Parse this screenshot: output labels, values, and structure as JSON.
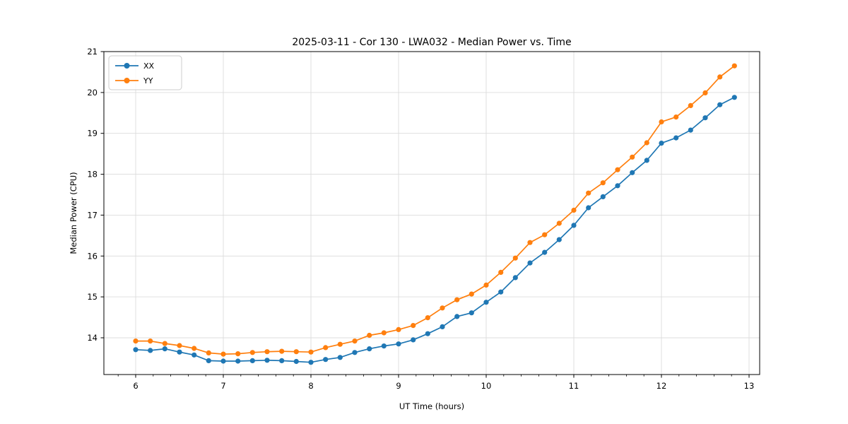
{
  "chart_data": {
    "type": "line",
    "title": "2025-03-11 - Cor 130 - LWA032 - Median Power vs. Time",
    "xlabel": "UT Time (hours)",
    "ylabel": "Median Power (CPU)",
    "xlim": [
      5.637,
      13.121
    ],
    "ylim": [
      13.101,
      21.0
    ],
    "xticks": [
      6,
      7,
      8,
      9,
      10,
      11,
      12,
      13
    ],
    "yticks": [
      14,
      15,
      16,
      17,
      18,
      19,
      20,
      21
    ],
    "x_minor_step": 0.2,
    "grid": true,
    "grid_color": "#dcdcdc",
    "marker": "circle",
    "legend_position": "upper-left",
    "legend_labels": [
      "XX",
      "YY"
    ],
    "x": [
      6.0,
      6.167,
      6.333,
      6.5,
      6.667,
      6.833,
      7.0,
      7.167,
      7.333,
      7.5,
      7.667,
      7.833,
      8.0,
      8.167,
      8.333,
      8.5,
      8.667,
      8.833,
      9.0,
      9.167,
      9.333,
      9.5,
      9.667,
      9.833,
      10.0,
      10.167,
      10.333,
      10.5,
      10.667,
      10.833,
      11.0,
      11.167,
      11.333,
      11.5,
      11.667,
      11.833,
      12.0,
      12.167,
      12.333,
      12.5,
      12.667,
      12.833
    ],
    "series": [
      {
        "name": "XX",
        "color": "#1f77b4",
        "values": [
          13.71,
          13.69,
          13.73,
          13.65,
          13.58,
          13.44,
          13.43,
          13.43,
          13.44,
          13.45,
          13.44,
          13.42,
          13.4,
          13.47,
          13.52,
          13.64,
          13.73,
          13.8,
          13.85,
          13.95,
          14.1,
          14.27,
          14.52,
          14.61,
          14.87,
          15.12,
          15.47,
          15.83,
          16.09,
          16.4,
          16.75,
          17.18,
          17.45,
          17.72,
          18.04,
          18.34,
          18.76,
          18.89,
          19.08,
          19.38,
          19.7,
          19.88
        ]
      },
      {
        "name": "YY",
        "color": "#ff7f0e",
        "values": [
          13.92,
          13.92,
          13.86,
          13.81,
          13.74,
          13.63,
          13.6,
          13.61,
          13.64,
          13.66,
          13.67,
          13.66,
          13.65,
          13.76,
          13.84,
          13.92,
          14.06,
          14.12,
          14.2,
          14.3,
          14.49,
          14.73,
          14.93,
          15.07,
          15.29,
          15.6,
          15.95,
          16.33,
          16.52,
          16.8,
          17.12,
          17.54,
          17.79,
          18.11,
          18.42,
          18.77,
          19.28,
          19.4,
          19.68,
          19.99,
          20.38,
          20.65
        ]
      }
    ]
  }
}
